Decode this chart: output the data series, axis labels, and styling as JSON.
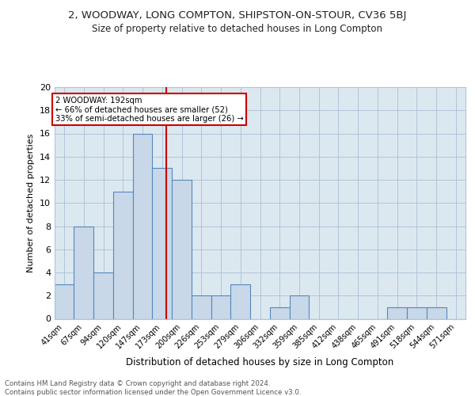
{
  "title": "2, WOODWAY, LONG COMPTON, SHIPSTON-ON-STOUR, CV36 5BJ",
  "subtitle": "Size of property relative to detached houses in Long Compton",
  "xlabel": "Distribution of detached houses by size in Long Compton",
  "ylabel": "Number of detached properties",
  "bin_labels": [
    "41sqm",
    "67sqm",
    "94sqm",
    "120sqm",
    "147sqm",
    "173sqm",
    "200sqm",
    "226sqm",
    "253sqm",
    "279sqm",
    "306sqm",
    "332sqm",
    "359sqm",
    "385sqm",
    "412sqm",
    "438sqm",
    "465sqm",
    "491sqm",
    "518sqm",
    "544sqm",
    "571sqm"
  ],
  "bar_heights": [
    3,
    8,
    4,
    11,
    16,
    13,
    12,
    2,
    2,
    3,
    0,
    1,
    2,
    0,
    0,
    0,
    0,
    1,
    1,
    1,
    0
  ],
  "bar_color": "#c8d8e8",
  "bar_edgecolor": "#5588bb",
  "vline_x": 192,
  "vline_color": "#cc0000",
  "annotation_text": "2 WOODWAY: 192sqm\n← 66% of detached houses are smaller (52)\n33% of semi-detached houses are larger (26) →",
  "annotation_box_edgecolor": "#cc0000",
  "ylim": [
    0,
    20
  ],
  "yticks": [
    0,
    2,
    4,
    6,
    8,
    10,
    12,
    14,
    16,
    18,
    20
  ],
  "grid_color": "#b0c4d8",
  "background_color": "#dce8f0",
  "footer_text": "Contains HM Land Registry data © Crown copyright and database right 2024.\nContains public sector information licensed under the Open Government Licence v3.0.",
  "bin_edges": [
    41,
    67,
    94,
    120,
    147,
    173,
    200,
    226,
    253,
    279,
    306,
    332,
    359,
    385,
    412,
    438,
    465,
    491,
    518,
    544,
    571,
    597
  ]
}
